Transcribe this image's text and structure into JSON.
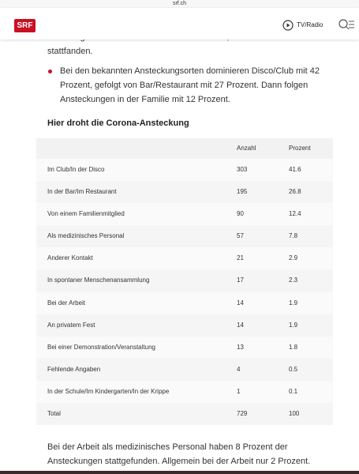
{
  "browser": {
    "url": "srf.ch"
  },
  "header": {
    "logo": "SRF",
    "tv_radio": "TV/Radio"
  },
  "article": {
    "intro_cut": "Bei weniger als der Hälfte der Fälle ist bekannt, wo die Infektionen",
    "intro_end": "stattfanden.",
    "bullet": "Bei den bekannten Ansteckungsorten dominieren Disco/Club mit 42 Prozent, gefolgt von Bar/Restaurant mit 27 Prozent. Dann folgen Ansteckungen in der Familie mit 12 Prozent.",
    "table_title": "Hier droht die Corona-Ansteckung",
    "table": {
      "columns": [
        "Anzahl",
        "Prozent"
      ],
      "rows": [
        [
          "Im Club/In der Disco",
          303,
          41.6
        ],
        [
          "In der Bar/Im Restaurant",
          195,
          26.8
        ],
        [
          "Von einem Familienmitglied",
          90,
          12.4
        ],
        [
          "Als medizinisches Personal",
          57,
          7.8
        ],
        [
          "Anderer Kontakt",
          21,
          2.9
        ],
        [
          "In spontaner Menschenansammlung",
          17,
          2.3
        ],
        [
          "Bei der Arbeit",
          14,
          1.9
        ],
        [
          "An privatem Fest",
          14,
          1.9
        ],
        [
          "Bei einer Demonstration/Veranstaltung",
          13,
          1.8
        ],
        [
          "Fehlende Angaben",
          4,
          0.5
        ],
        [
          "In der Schule/Im Kindergarten/In der Krippe",
          1,
          0.1
        ],
        [
          "Total",
          729,
          100
        ]
      ]
    },
    "outro": "Bei der Arbeit als medizinisches Personal haben 8 Prozent der Ansteckungen stattgefunden. Allgemein bei der Arbeit nur 2 Prozent."
  }
}
